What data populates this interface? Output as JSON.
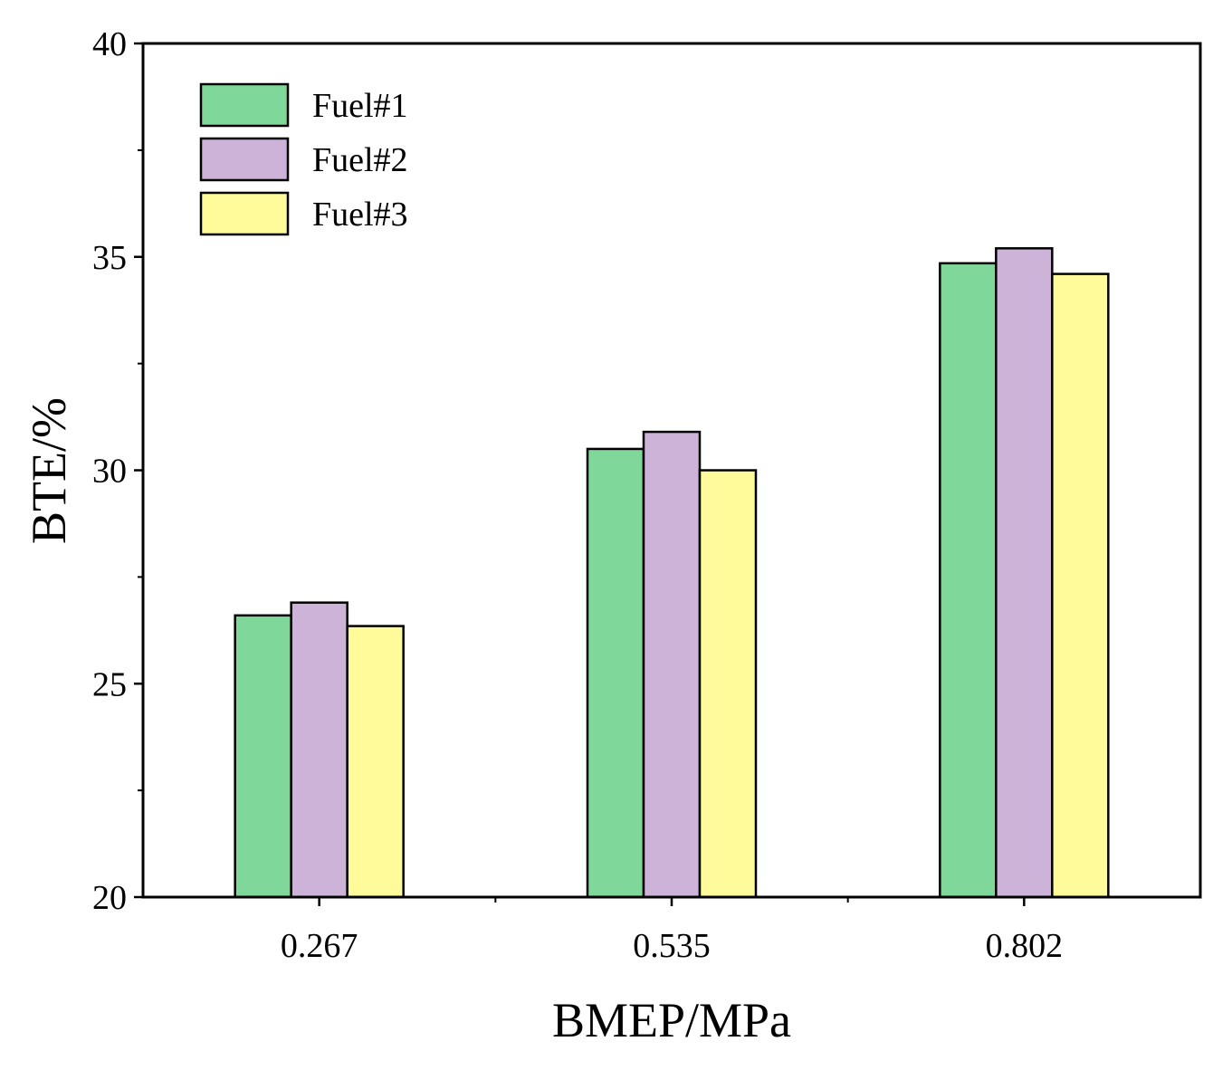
{
  "chart_data": {
    "type": "bar",
    "categories": [
      "0.267",
      "0.535",
      "0.802"
    ],
    "series": [
      {
        "name": "Fuel#1",
        "color": "#7fd89a",
        "values": [
          26.6,
          30.5,
          34.85
        ]
      },
      {
        "name": "Fuel#2",
        "color": "#cdb3d8",
        "values": [
          26.9,
          30.9,
          35.2
        ]
      },
      {
        "name": "Fuel#3",
        "color": "#fffb9a",
        "values": [
          26.35,
          30.0,
          34.6
        ]
      }
    ],
    "xlabel": "BMEP/MPa",
    "ylabel": "BTE/%",
    "ylim": [
      20,
      40
    ],
    "yticks": [
      "20",
      "25",
      "30",
      "35",
      "40"
    ],
    "grid": false,
    "legend_position": "top-left"
  }
}
